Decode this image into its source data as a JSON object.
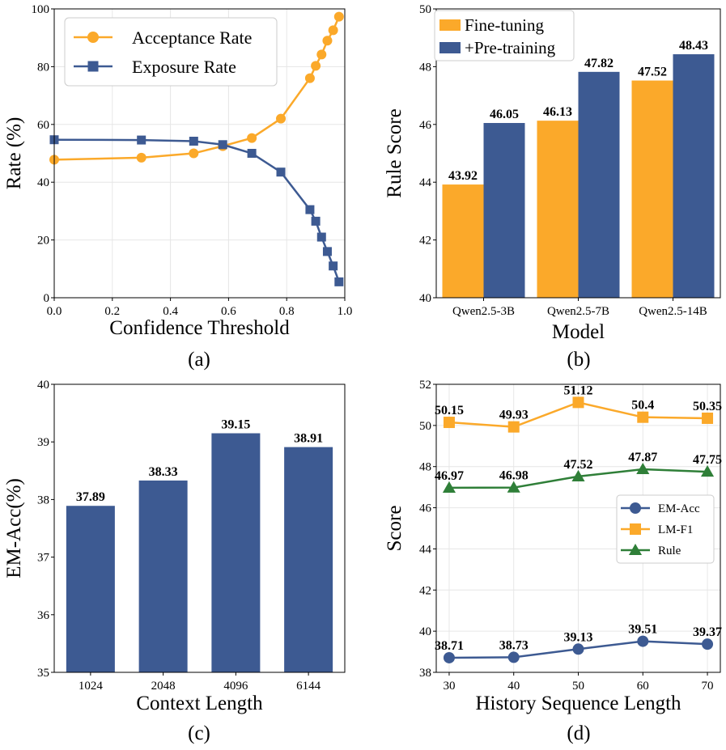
{
  "colors": {
    "orange": "#FBA92A",
    "blue": "#3D5A92",
    "green": "#2F7F38"
  },
  "chart_data": [
    {
      "id": "a",
      "type": "line",
      "panel_label": "(a)",
      "xlabel": "Confidence Threshold",
      "ylabel": "Rate (%)",
      "xlim": [
        0,
        1
      ],
      "ylim": [
        0,
        100
      ],
      "xticks": [
        "0.0",
        "0.2",
        "0.4",
        "0.6",
        "0.8",
        "1.0"
      ],
      "yticks": [
        "0",
        "20",
        "40",
        "60",
        "80",
        "100"
      ],
      "legend_loc": "top-left",
      "series": [
        {
          "name": "Acceptance Rate",
          "color": "orange",
          "marker": "circle",
          "x": [
            0.0,
            0.3,
            0.48,
            0.58,
            0.68,
            0.78,
            0.88,
            0.9,
            0.92,
            0.94,
            0.96,
            0.98
          ],
          "y": [
            47.8,
            48.5,
            50,
            52.5,
            55.3,
            62,
            76,
            80.3,
            84.2,
            89,
            92.6,
            97.3
          ]
        },
        {
          "name": "Exposure Rate",
          "color": "blue",
          "marker": "square",
          "x": [
            0.0,
            0.3,
            0.48,
            0.58,
            0.68,
            0.78,
            0.88,
            0.9,
            0.92,
            0.94,
            0.96,
            0.98
          ],
          "y": [
            54.7,
            54.6,
            54.2,
            53,
            50,
            43.5,
            30.5,
            26.5,
            21,
            16,
            11,
            5.5
          ]
        }
      ]
    },
    {
      "id": "b",
      "type": "bar",
      "panel_label": "(b)",
      "xlabel": "Model",
      "ylabel": "Rule Score",
      "ylim": [
        40,
        50
      ],
      "yticks": [
        "40",
        "42",
        "44",
        "46",
        "48",
        "50"
      ],
      "categories": [
        "Qwen2.5-3B",
        "Qwen2.5-7B",
        "Qwen2.5-14B"
      ],
      "legend_loc": "top-left",
      "series": [
        {
          "name": "Fine-tuning",
          "color": "orange",
          "values": [
            43.92,
            46.13,
            47.52
          ],
          "labels": [
            "43.92",
            "46.13",
            "47.52"
          ]
        },
        {
          "name": "+Pre-training",
          "color": "blue",
          "values": [
            46.05,
            47.82,
            48.43
          ],
          "labels": [
            "46.05",
            "47.82",
            "48.43"
          ]
        }
      ]
    },
    {
      "id": "c",
      "type": "bar",
      "panel_label": "(c)",
      "xlabel": "Context Length",
      "ylabel": "EM-Acc(%)",
      "ylim": [
        35,
        40
      ],
      "yticks": [
        "35",
        "36",
        "37",
        "38",
        "39",
        "40"
      ],
      "categories": [
        "1024",
        "2048",
        "4096",
        "6144"
      ],
      "series": [
        {
          "name": "EM-Acc",
          "color": "blue",
          "values": [
            37.89,
            38.33,
            39.15,
            38.91
          ],
          "labels": [
            "37.89",
            "38.33",
            "39.15",
            "38.91"
          ]
        }
      ]
    },
    {
      "id": "d",
      "type": "line",
      "panel_label": "(d)",
      "xlabel": "History Sequence Length",
      "ylabel": "Score",
      "xlim": [
        28,
        72
      ],
      "ylim": [
        38,
        52
      ],
      "xticks": [
        "30",
        "40",
        "50",
        "60",
        "70"
      ],
      "yticks": [
        "38",
        "40",
        "42",
        "44",
        "46",
        "48",
        "50",
        "52"
      ],
      "legend_loc": "center-right",
      "series": [
        {
          "name": "EM-Acc",
          "color": "blue",
          "marker": "circle",
          "x": [
            30,
            40,
            50,
            60,
            70
          ],
          "y": [
            38.71,
            38.73,
            39.13,
            39.51,
            39.37
          ],
          "labels": [
            "38.71",
            "38.73",
            "39.13",
            "39.51",
            "39.37"
          ]
        },
        {
          "name": "LM-F1",
          "color": "orange",
          "marker": "square",
          "x": [
            30,
            40,
            50,
            60,
            70
          ],
          "y": [
            50.15,
            49.93,
            51.12,
            50.4,
            50.35
          ],
          "labels": [
            "50.15",
            "49.93",
            "51.12",
            "50.4",
            "50.35"
          ]
        },
        {
          "name": "Rule",
          "color": "green",
          "marker": "triangle",
          "x": [
            30,
            40,
            50,
            60,
            70
          ],
          "y": [
            46.97,
            46.98,
            47.52,
            47.87,
            47.75
          ],
          "labels": [
            "46.97",
            "46.98",
            "47.52",
            "47.87",
            "47.75"
          ]
        }
      ]
    }
  ]
}
